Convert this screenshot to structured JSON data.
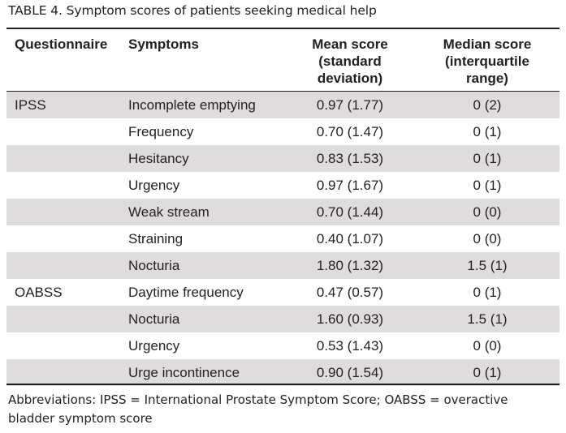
{
  "title": "TABLE 4.  Symptom scores of patients seeking medical help",
  "headers": {
    "questionnaire": "Questionnaire",
    "symptoms": "Symptoms",
    "mean": [
      "Mean score",
      "(standard",
      "deviation)"
    ],
    "median": [
      "Median score",
      "(interquartile",
      "range)"
    ]
  },
  "rows": [
    {
      "questionnaire": "IPSS",
      "symptom": "Incomplete emptying",
      "mean": "0.97 (1.77)",
      "median": "0 (2)"
    },
    {
      "questionnaire": "",
      "symptom": "Frequency",
      "mean": "0.70 (1.47)",
      "median": "0 (1)"
    },
    {
      "questionnaire": "",
      "symptom": "Hesitancy",
      "mean": "0.83 (1.53)",
      "median": "0 (1)"
    },
    {
      "questionnaire": "",
      "symptom": "Urgency",
      "mean": "0.97 (1.67)",
      "median": "0 (1)"
    },
    {
      "questionnaire": "",
      "symptom": "Weak stream",
      "mean": "0.70 (1.44)",
      "median": "0 (0)"
    },
    {
      "questionnaire": "",
      "symptom": "Straining",
      "mean": "0.40 (1.07)",
      "median": "0 (0)"
    },
    {
      "questionnaire": "",
      "symptom": "Nocturia",
      "mean": "1.80 (1.32)",
      "median": "1.5 (1)"
    },
    {
      "questionnaire": "OABSS",
      "symptom": "Daytime frequency",
      "mean": "0.47 (0.57)",
      "median": "0 (1)"
    },
    {
      "questionnaire": "",
      "symptom": "Nocturia",
      "mean": "1.60 (0.93)",
      "median": "1.5 (1)"
    },
    {
      "questionnaire": "",
      "symptom": "Urgency",
      "mean": "0.53 (1.43)",
      "median": "0 (0)"
    },
    {
      "questionnaire": "",
      "symptom": "Urge incontinence",
      "mean": "0.90 (1.54)",
      "median": "0 (1)"
    }
  ],
  "footnote": "Abbreviations: IPSS = International Prostate Symptom Score; OABSS = overactive bladder symptom score",
  "colors": {
    "text": "#231f20",
    "shade": "#dedcdc"
  }
}
